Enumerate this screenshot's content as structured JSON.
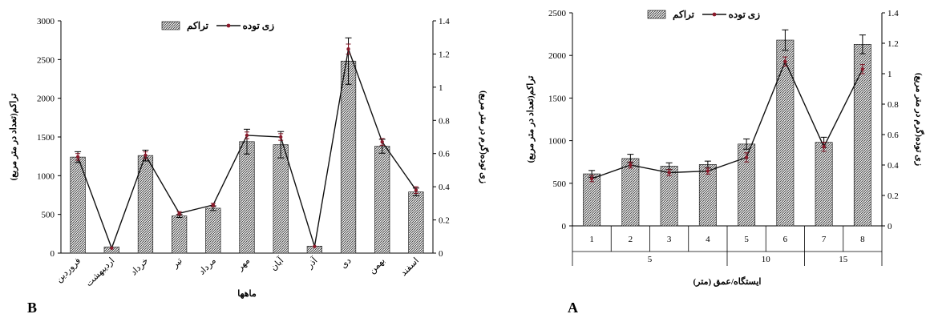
{
  "chart_data": [
    {
      "type": "bar",
      "panel_label": "B",
      "categories": [
        "فروردین",
        "اردیبهشت",
        "خرداد",
        "تیر",
        "مرداد",
        "مهر",
        "آبان",
        "آذر",
        "دی",
        "بهمن",
        "اسفند"
      ],
      "xlabel": "ماهها",
      "ylabel": "تراکم(تعداد در متر مربع)",
      "y2label": "زی توده(گرم در متر مربع)",
      "ylim": [
        0,
        3000
      ],
      "y2lim": [
        0,
        1.4
      ],
      "yticks": [
        "0",
        "500",
        "1000",
        "1500",
        "2000",
        "2500",
        "3000"
      ],
      "y2ticks": [
        "0",
        "0.2",
        "0.4",
        "0.6",
        "0.8",
        "1",
        "1.2",
        "1.4"
      ],
      "legend": [
        "تراکم",
        "زی توده"
      ],
      "series": [
        {
          "name": "تراکم",
          "type": "bar",
          "axis": "left",
          "values": [
            1240,
            80,
            1260,
            480,
            580,
            1440,
            1400,
            90,
            2480,
            1380,
            790
          ],
          "errors": [
            70,
            0,
            70,
            20,
            30,
            160,
            170,
            0,
            300,
            90,
            50
          ]
        },
        {
          "name": "زی توده",
          "type": "line",
          "axis": "right",
          "values": [
            0.58,
            0.03,
            0.59,
            0.24,
            0.29,
            0.71,
            0.7,
            0.04,
            1.23,
            0.67,
            0.38
          ],
          "errors": [
            0.02,
            0,
            0.02,
            0.01,
            0.01,
            0.02,
            0.02,
            0,
            0.03,
            0.02,
            0.02
          ]
        }
      ]
    },
    {
      "type": "bar",
      "panel_label": "A",
      "categories": [
        "1",
        "2",
        "3",
        "4",
        "5",
        "6",
        "7",
        "8"
      ],
      "group_categories": [
        {
          "label": "5",
          "span": [
            0,
            3
          ]
        },
        {
          "label": "10",
          "span": [
            4,
            5
          ]
        },
        {
          "label": "15",
          "span": [
            6,
            7
          ]
        }
      ],
      "xlabel": "ایستگاه/عمق (متر)",
      "ylabel": "(تراکم(تعداد در متر مربع",
      "y2label": "(زی توده(گرم در متر مربع",
      "ylim": [
        0,
        2500
      ],
      "y2lim": [
        0,
        1.4
      ],
      "yticks": [
        "0",
        "500",
        "1000",
        "1500",
        "2000",
        "2500"
      ],
      "y2ticks": [
        "0",
        "0.2",
        "0.4",
        "0.6",
        "0.8",
        "1",
        "1.2",
        "1.4"
      ],
      "legend": [
        "تراکم",
        "زی توده"
      ],
      "series": [
        {
          "name": "تراکم",
          "type": "bar",
          "axis": "left",
          "values": [
            610,
            790,
            700,
            720,
            960,
            2180,
            980,
            2130
          ],
          "errors": [
            40,
            50,
            40,
            40,
            60,
            120,
            60,
            110
          ]
        },
        {
          "name": "زی توده",
          "type": "line",
          "axis": "right",
          "values": [
            0.31,
            0.4,
            0.35,
            0.36,
            0.45,
            1.08,
            0.52,
            1.03
          ],
          "errors": [
            0.02,
            0.02,
            0.02,
            0.02,
            0.03,
            0.03,
            0.03,
            0.03
          ]
        }
      ]
    }
  ]
}
